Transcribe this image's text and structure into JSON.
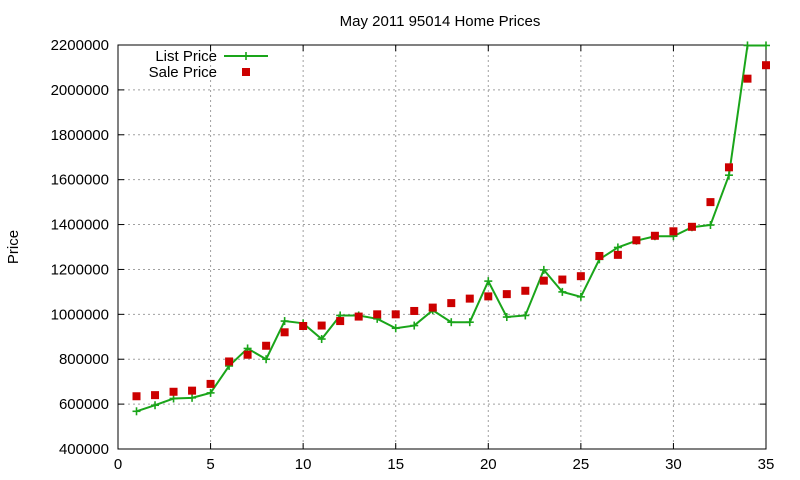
{
  "chart_data": {
    "type": "line",
    "title": "May 2011 95014 Home Prices",
    "xlabel": "",
    "ylabel": "Price",
    "xlim": [
      0,
      35
    ],
    "ylim": [
      400000,
      2200000
    ],
    "xticks": [
      "0",
      "5",
      "10",
      "15",
      "20",
      "25",
      "30",
      "35"
    ],
    "yticks": [
      "400000",
      "600000",
      "800000",
      "1000000",
      "1200000",
      "1400000",
      "1600000",
      "1800000",
      "2000000",
      "2200000"
    ],
    "grid": true,
    "legend_position": "top-left",
    "x": [
      1,
      2,
      3,
      4,
      5,
      6,
      7,
      8,
      9,
      10,
      11,
      12,
      13,
      14,
      15,
      16,
      17,
      18,
      19,
      20,
      21,
      22,
      23,
      24,
      25,
      26,
      27,
      28,
      29,
      30,
      31,
      32,
      33,
      34,
      35
    ],
    "series": [
      {
        "name": "List Price",
        "style": "line-with-plus-markers",
        "color": "#1aa51a",
        "values": [
          568000,
          595000,
          625000,
          628000,
          650000,
          770000,
          848000,
          800000,
          970000,
          960000,
          890000,
          995000,
          995000,
          980000,
          938000,
          950000,
          1018000,
          965000,
          965000,
          1148000,
          988000,
          995000,
          1198000,
          1100000,
          1078000,
          1245000,
          1298000,
          1328000,
          1348000,
          1348000,
          1388000,
          1398000,
          1620000,
          2198000,
          2198000
        ]
      },
      {
        "name": "Sale Price",
        "style": "square-markers",
        "color": "#cc0000",
        "values": [
          635000,
          640000,
          655000,
          660000,
          690000,
          790000,
          820000,
          860000,
          920000,
          948000,
          950000,
          970000,
          990000,
          1000000,
          1000000,
          1015000,
          1030000,
          1050000,
          1070000,
          1080000,
          1090000,
          1105000,
          1150000,
          1155000,
          1170000,
          1260000,
          1265000,
          1330000,
          1350000,
          1370000,
          1390000,
          1500000,
          1655000,
          2050000,
          2110000
        ]
      }
    ]
  }
}
